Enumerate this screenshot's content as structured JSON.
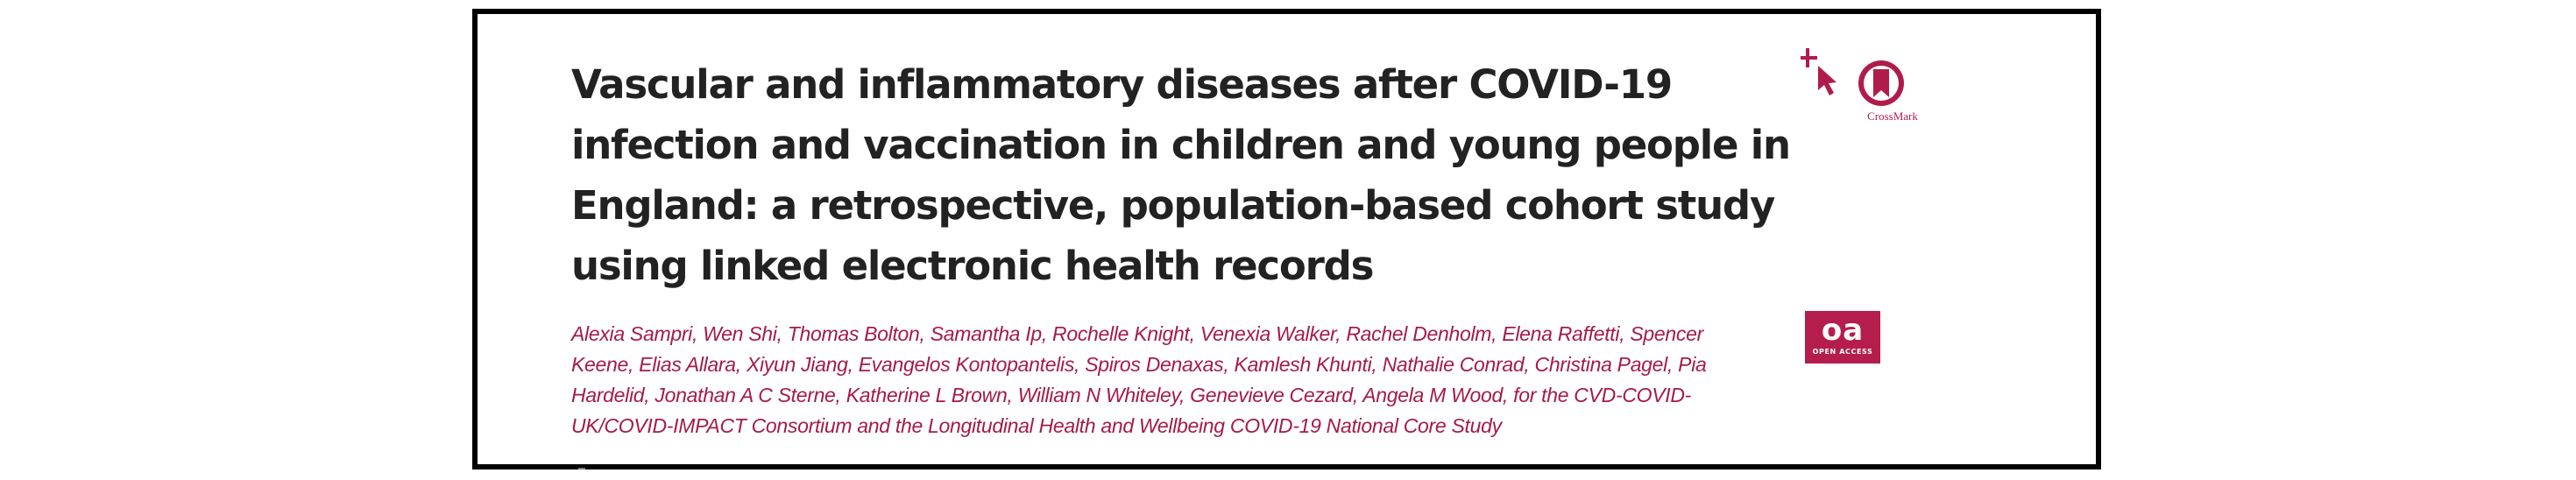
{
  "article": {
    "title": "Vascular and inflammatory diseases after COVID-19 infection and vaccination in children and young people in England: a retrospective, population-based cohort study using linked electronic health records",
    "authors": "Alexia Sampri, Wen Shi, Thomas Bolton, Samantha Ip, Rochelle Knight, Venexia Walker, Rachel Denholm, Elena Raffetti, Spencer Keene, Elias Allara, Xiyun Jiang, Evangelos Kontopantelis, Spiros Denaxas, Kamlesh Khunti, Nathalie Conrad, Christina Pagel, Pia Hardelid, Jonathan A C Sterne, Katherine L Brown, William N Whiteley, Genevieve Cezard, Angela M Wood, for the CVD-COVID-UK/COVID-IMPACT Consortium and the Longitudinal Health and Wellbeing COVID-19 National Core Study"
  },
  "badges": {
    "crossmark_label": "CrossMark",
    "crossmark_icon": "crossmark-icon",
    "oa_label": "oa",
    "oa_sublabel": "OPEN ACCESS"
  },
  "colors": {
    "accent": "#b41d4c",
    "title": "#222222",
    "border": "#000000"
  }
}
